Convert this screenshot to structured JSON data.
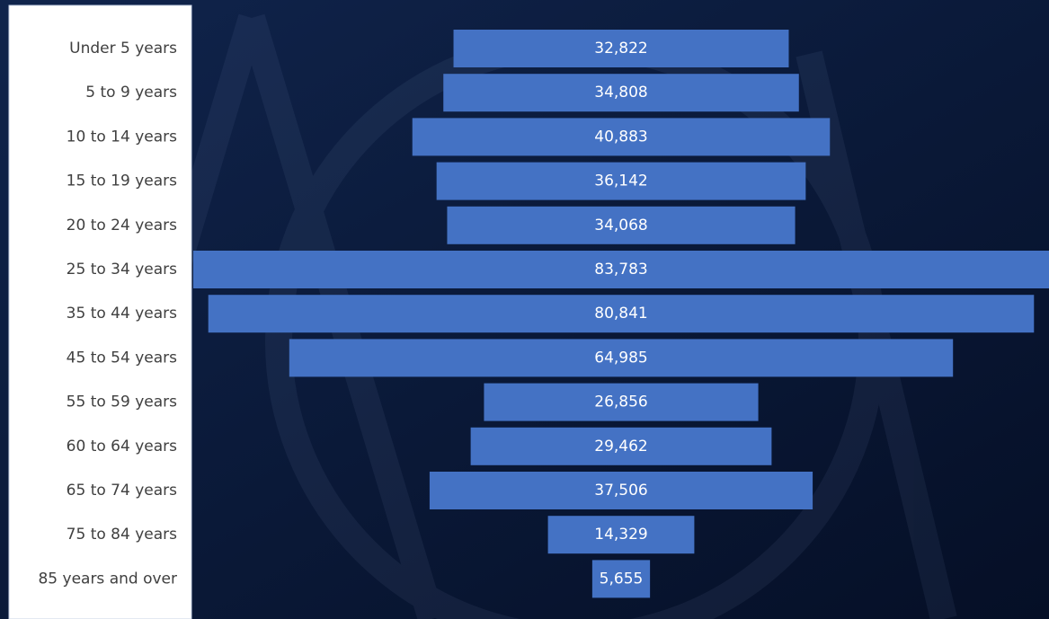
{
  "chart_data": {
    "type": "funnel",
    "categories": [
      "Under 5 years",
      "5 to 9 years",
      "10 to 14 years",
      "15 to 19 years",
      "20 to 24 years",
      "25 to 34 years",
      "35 to 44 years",
      "45 to 54 years",
      "55 to 59 years",
      "60 to 64 years",
      "65 to 74 years",
      "75 to 84 years",
      "85 years and over"
    ],
    "values": [
      32822,
      34808,
      40883,
      36142,
      34068,
      83783,
      80841,
      64985,
      26856,
      29462,
      37506,
      14329,
      5655
    ],
    "value_labels": [
      "32,822",
      "34,808",
      "40,883",
      "36,142",
      "34,068",
      "83,783",
      "80,841",
      "64,985",
      "26,856",
      "29,462",
      "37,506",
      "14,329",
      "5,655"
    ],
    "color": "#4472c4"
  }
}
